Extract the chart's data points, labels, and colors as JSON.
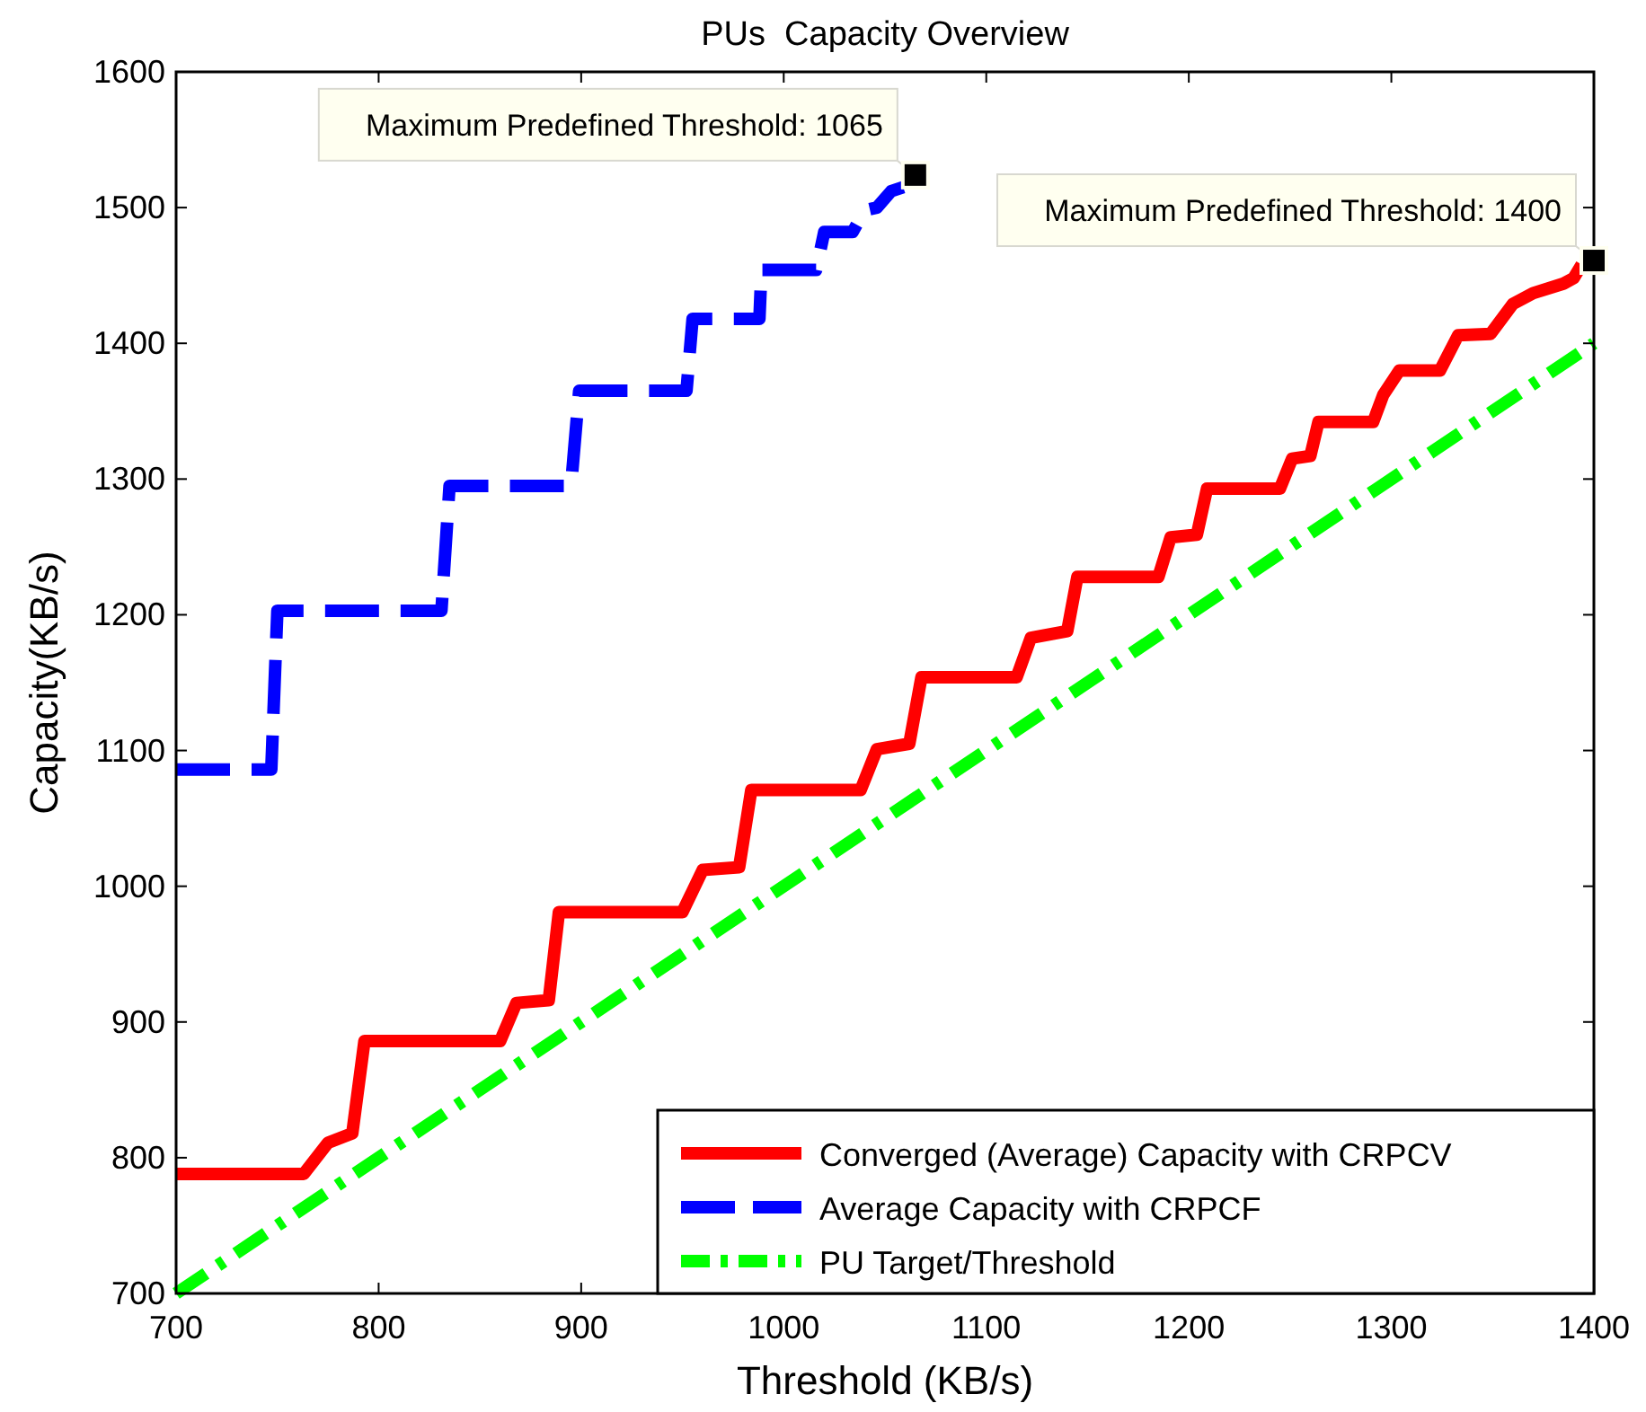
{
  "chart_data": {
    "type": "line",
    "title": "PUs  Capacity Overview",
    "xlabel": "Threshold (KB/s)",
    "ylabel": "Capacity(KB/s)",
    "xlim": [
      700,
      1400
    ],
    "xticks": [
      700,
      800,
      900,
      1000,
      1100,
      1200,
      1300,
      1400
    ],
    "ylim": [
      700,
      1600
    ],
    "yticks": [
      700,
      800,
      900,
      1000,
      1100,
      1200,
      1300,
      1400,
      1500,
      1600
    ],
    "grid": false,
    "legend": "bottom right",
    "marker": "none",
    "series": [
      {
        "name": "Converged (Average) Capacity with CRPCV",
        "color": "#ff0000",
        "line_style": "solid",
        "x": [
          700,
          763,
          775,
          787,
          793,
          860,
          868,
          884,
          889,
          950,
          960,
          978,
          984,
          1038,
          1046,
          1062,
          1068,
          1115,
          1122,
          1140,
          1145,
          1185,
          1191,
          1204,
          1209,
          1245,
          1251,
          1260,
          1264,
          1291,
          1296,
          1304,
          1324,
          1333,
          1349,
          1360,
          1370,
          1385,
          1390,
          1394
        ],
        "values": [
          788,
          788,
          811,
          818,
          886,
          886,
          914,
          916,
          981,
          981,
          1012,
          1014,
          1071,
          1071,
          1101,
          1105,
          1154,
          1154,
          1183,
          1188,
          1228,
          1228,
          1257,
          1259,
          1293,
          1293,
          1315,
          1317,
          1342,
          1342,
          1362,
          1380,
          1380,
          1406,
          1407,
          1429,
          1437,
          1444,
          1448,
          1458
        ]
      },
      {
        "name": "Average Capacity with CRPCF",
        "color": "#0000ff",
        "line_style": "dashed",
        "x": [
          700,
          747,
          750,
          831,
          835,
          895,
          899,
          952,
          955,
          988,
          989,
          1016,
          1020,
          1034,
          1040,
          1046,
          1053,
          1059
        ],
        "values": [
          1086,
          1086,
          1203,
          1203,
          1295,
          1295,
          1365,
          1365,
          1418,
          1418,
          1454,
          1454,
          1482,
          1482,
          1498,
          1500,
          1512,
          1515
        ]
      },
      {
        "name": "PU Target/Threshold",
        "color": "#00ff00",
        "line_style": "dashdot",
        "x": [
          700,
          1400
        ],
        "values": [
          700,
          1400
        ]
      }
    ],
    "annotations": [
      {
        "text": "Maximum Predefined Threshold: 1065",
        "x": 1065,
        "y": 1524
      },
      {
        "text": "Maximum Predefined Threshold: 1400",
        "x": 1400,
        "y": 1461
      }
    ]
  }
}
